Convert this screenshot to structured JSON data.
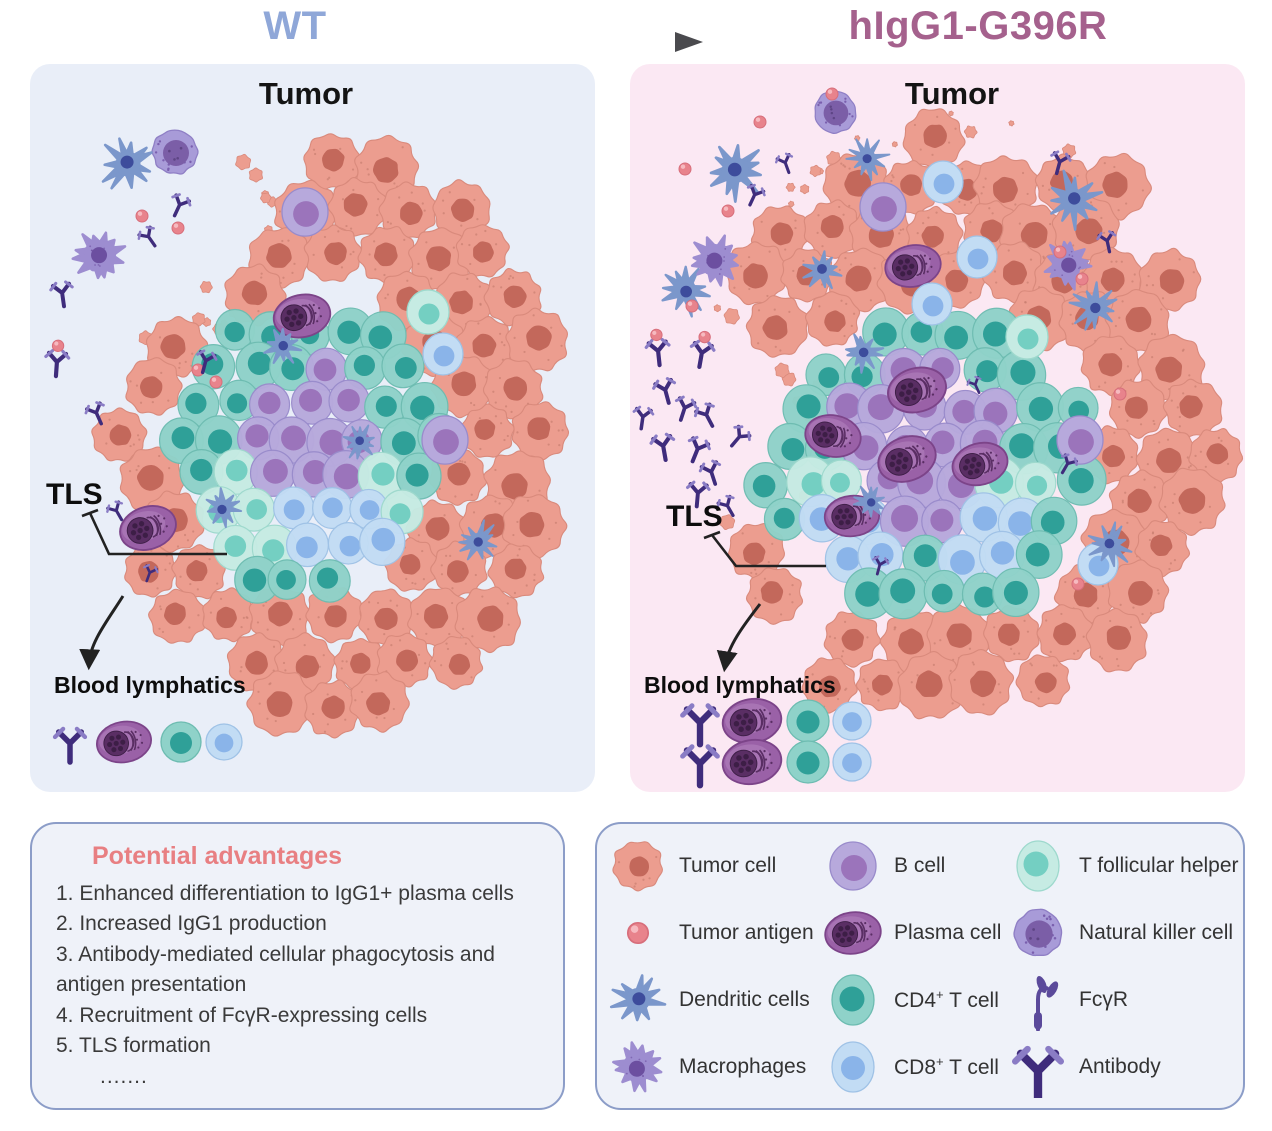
{
  "header": {
    "left_title": "WT",
    "right_title": "hIgG1-G396R",
    "transition_icon": "arrow-right"
  },
  "panels": {
    "left": {
      "region_label": "Tumor",
      "tls_label": "TLS",
      "lymphatics_label": "Blood lymphatics"
    },
    "right": {
      "region_label": "Tumor",
      "tls_label": "TLS",
      "lymphatics_label": "Blood lymphatics"
    }
  },
  "advantages": {
    "title": "Potential advantages",
    "items": [
      "1. Enhanced differentiation to IgG1+ plasma cells",
      "2. Increased IgG1 production",
      "3. Antibody-mediated cellular phagocytosis and antigen presentation",
      "4. Recruitment of FcγR-expressing cells",
      "5. TLS formation",
      "......."
    ]
  },
  "legend": {
    "items": [
      {
        "icon": "tumor-cell",
        "base": "Tumor cell",
        "sup": "",
        "rest": ""
      },
      {
        "icon": "b-cell",
        "base": "B cell",
        "sup": "",
        "rest": ""
      },
      {
        "icon": "t-follicular-helper",
        "base": "T follicular helper",
        "sup": "",
        "rest": ""
      },
      {
        "icon": "tumor-antigen",
        "base": "Tumor antigen",
        "sup": "",
        "rest": ""
      },
      {
        "icon": "plasma-cell",
        "base": "Plasma cell",
        "sup": "",
        "rest": ""
      },
      {
        "icon": "natural-killer-cell",
        "base": "Natural killer cell",
        "sup": "",
        "rest": ""
      },
      {
        "icon": "dendritic-cell",
        "base": "Dendritic cells",
        "sup": "",
        "rest": ""
      },
      {
        "icon": "cd4-t-cell",
        "base": "CD4",
        "sup": "+",
        "rest": " T cell"
      },
      {
        "icon": "fcyr",
        "base": "FcγR",
        "sup": "",
        "rest": ""
      },
      {
        "icon": "macrophage",
        "base": "Macrophages",
        "sup": "",
        "rest": ""
      },
      {
        "icon": "cd8-t-cell",
        "base": "CD8",
        "sup": "+",
        "rest": " T cell"
      },
      {
        "icon": "antibody",
        "base": "Antibody",
        "sup": "",
        "rest": ""
      }
    ]
  },
  "colors": {
    "panel_left_bg": "#E9EEF8",
    "panel_right_bg": "#FBE8F3",
    "wt_title": "#8FA7D8",
    "g396r_title": "#A5618D",
    "tumor_body": "#EC9D8F",
    "tumor_edge": "#D98A7C",
    "tumor_nucleus": "#C3685B",
    "tumor_speck": "#C97F70",
    "antigen": "#E8838C",
    "antigen_edge": "#D76E7B",
    "antigen_hi": "#F6BAC0",
    "cd4_body": "#8FD2C9",
    "cd4_edge": "#6DBCB1",
    "cd4_nucleus": "#2FA098",
    "tfh_body": "#C6EBE3",
    "tfh_edge": "#9ED9CD",
    "tfh_nucleus": "#74CFC2",
    "cd8_body": "#C2DCF4",
    "cd8_edge": "#9FC2E6",
    "cd8_nucleus": "#8AB4E9",
    "b_body": "#B7A9DC",
    "b_edge": "#998BCB",
    "b_nucleus": "#9B74BB",
    "plasma_body": "#9A61A7",
    "plasma_body2": "#B688C1",
    "plasma_edge": "#7C4489",
    "plasma_nucleus": "#5A2E64",
    "plasma_dot": "#3D1E46",
    "dc_body": "#7B97CB",
    "dc_nucleus": "#3D4C9C",
    "mac_body": "#9D8DD0",
    "mac_nucleus": "#6C4FA0",
    "nk_body": "#A89BD8",
    "nk_edge": "#8F7FC5",
    "nk_speck": "#7A5FAE",
    "nk_nucleus": "#7B5EA7",
    "ab_dark": "#3F2C7C",
    "ab_light": "#8A7CC5",
    "fcyr": "#5B4A9B",
    "ink": "#222222",
    "box_bg": "#EFF2F9",
    "box_border": "#8C9DC8",
    "adv_title": "#E87F82",
    "text": "#3A3A3A",
    "arrow": "#4A4A4E"
  }
}
